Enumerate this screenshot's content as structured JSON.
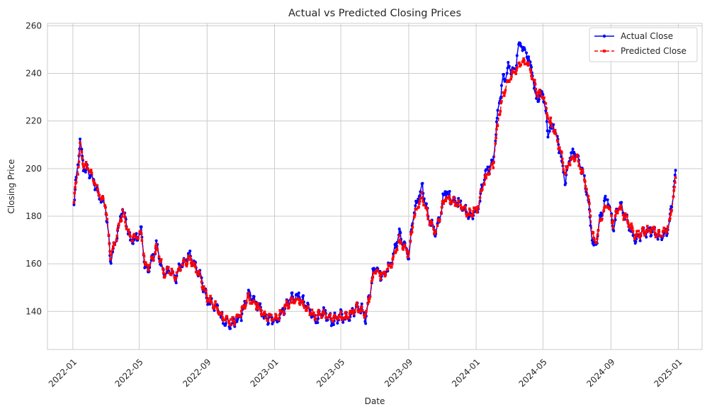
{
  "chart_data": {
    "type": "line",
    "title": "Actual vs Predicted Closing Prices",
    "xlabel": "Date",
    "ylabel": "Closing Price",
    "xlim": [
      "2021-11-16",
      "2025-02-13"
    ],
    "ylim": [
      124,
      261
    ],
    "grid": true,
    "legend_position": "top-right",
    "x_ticks": [
      "2022-01",
      "2022-05",
      "2022-09",
      "2023-01",
      "2023-05",
      "2023-09",
      "2024-01",
      "2024-05",
      "2024-09",
      "2025-01"
    ],
    "y_ticks": [
      140,
      160,
      180,
      200,
      220,
      240,
      260
    ],
    "anchors": {
      "dates": [
        "2022-01-03",
        "2022-01-10",
        "2022-01-14",
        "2022-01-20",
        "2022-02-01",
        "2022-02-15",
        "2022-03-01",
        "2022-03-10",
        "2022-03-20",
        "2022-04-01",
        "2022-04-15",
        "2022-04-25",
        "2022-05-05",
        "2022-05-12",
        "2022-05-20",
        "2022-06-01",
        "2022-06-15",
        "2022-06-25",
        "2022-07-05",
        "2022-07-15",
        "2022-08-01",
        "2022-08-15",
        "2022-09-01",
        "2022-09-20",
        "2022-10-01",
        "2022-10-15",
        "2022-11-01",
        "2022-11-15",
        "2022-12-01",
        "2022-12-15",
        "2023-01-03",
        "2023-01-15",
        "2023-02-01",
        "2023-02-15",
        "2023-03-01",
        "2023-03-15",
        "2023-04-01",
        "2023-04-15",
        "2023-05-01",
        "2023-05-15",
        "2023-05-31",
        "2023-06-10",
        "2023-06-15",
        "2023-07-01",
        "2023-07-15",
        "2023-08-01",
        "2023-08-15",
        "2023-09-01",
        "2023-09-10",
        "2023-09-25",
        "2023-10-05",
        "2023-10-20",
        "2023-11-05",
        "2023-11-20",
        "2023-12-05",
        "2023-12-20",
        "2024-01-03",
        "2024-01-15",
        "2024-02-01",
        "2024-02-10",
        "2024-02-20",
        "2024-03-01",
        "2024-03-10",
        "2024-03-20",
        "2024-04-01",
        "2024-04-10",
        "2024-04-20",
        "2024-05-01",
        "2024-05-10",
        "2024-05-20",
        "2024-06-01",
        "2024-06-10",
        "2024-06-20",
        "2024-07-01",
        "2024-07-10",
        "2024-07-20",
        "2024-08-01",
        "2024-08-05",
        "2024-08-15",
        "2024-08-25",
        "2024-09-05",
        "2024-09-15",
        "2024-10-01",
        "2024-10-15",
        "2024-11-01",
        "2024-11-15",
        "2024-12-01",
        "2024-12-15",
        "2024-12-27"
      ],
      "actual": [
        186,
        201,
        211,
        201,
        198,
        190,
        184,
        162,
        170,
        184,
        170,
        170,
        174,
        157,
        158,
        168,
        155,
        158,
        153,
        160,
        163,
        158,
        145,
        141,
        136,
        134,
        138,
        147,
        143,
        137,
        136,
        140,
        146,
        146,
        142,
        137,
        139,
        136,
        138,
        137,
        143,
        140,
        137,
        160,
        154,
        161,
        173,
        163,
        181,
        193,
        181,
        172,
        190,
        187,
        185,
        180,
        182,
        196,
        203,
        225,
        238,
        243,
        240,
        253,
        248,
        242,
        228,
        232,
        215,
        218,
        207,
        195,
        206,
        206,
        200,
        189,
        167,
        168,
        182,
        188,
        175,
        186,
        178,
        170,
        174,
        174,
        171,
        175,
        199
      ],
      "predicted": [
        187,
        199,
        209,
        202,
        199,
        191,
        185,
        163,
        171,
        182,
        171,
        171,
        173,
        159,
        159,
        167,
        156,
        158,
        154,
        159,
        162,
        157,
        146,
        141,
        137,
        135,
        139,
        146,
        142,
        138,
        137,
        140,
        145,
        145,
        141,
        138,
        139,
        137,
        138,
        138,
        142,
        140,
        138,
        158,
        155,
        160,
        170,
        164,
        179,
        189,
        180,
        173,
        188,
        186,
        184,
        181,
        183,
        194,
        202,
        221,
        232,
        238,
        240,
        244,
        245,
        240,
        232,
        231,
        222,
        217,
        208,
        198,
        204,
        205,
        199,
        191,
        170,
        170,
        180,
        186,
        177,
        184,
        178,
        172,
        174,
        174,
        172,
        175,
        195
      ]
    },
    "series": [
      {
        "name": "Actual Close",
        "color": "#0000ff",
        "style": "solid",
        "marker": "circle"
      },
      {
        "name": "Predicted Close",
        "color": "#ff0000",
        "style": "dashed",
        "marker": "square"
      }
    ]
  }
}
